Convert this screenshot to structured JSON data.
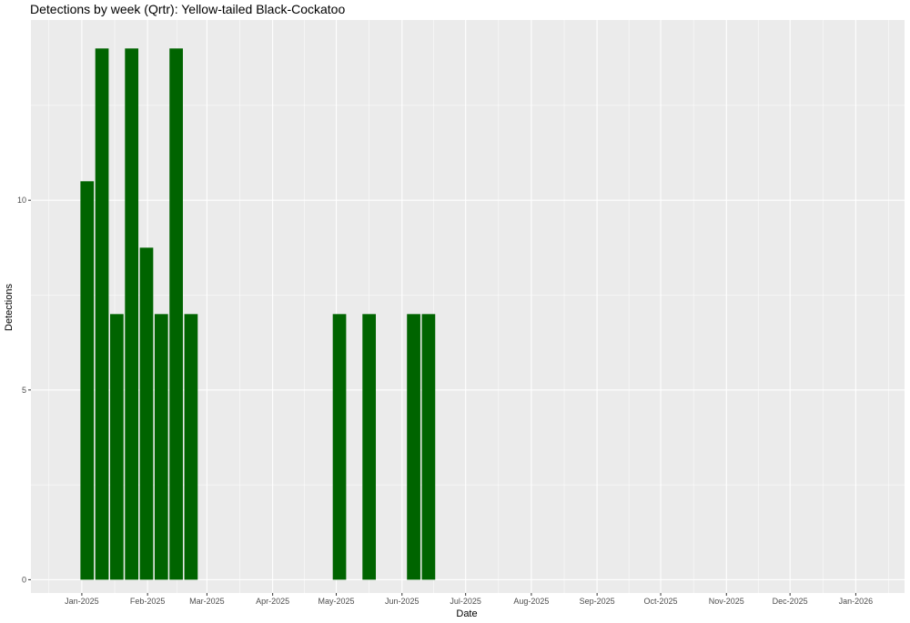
{
  "chart_data": {
    "type": "bar",
    "title": "Detections by week (Qrtr): Yellow-tailed Black-Cockatoo",
    "xlabel": "Date",
    "ylabel": "Detections",
    "x_ticks": [
      "Jan-2025",
      "Feb-2025",
      "Mar-2025",
      "Apr-2025",
      "May-2025",
      "Jun-2025",
      "Jul-2025",
      "Aug-2025",
      "Sep-2025",
      "Oct-2025",
      "Nov-2025",
      "Dec-2025",
      "Jan-2026"
    ],
    "x_tick_dates": [
      "2025-01-01",
      "2025-02-01",
      "2025-03-01",
      "2025-04-01",
      "2025-05-01",
      "2025-06-01",
      "2025-07-01",
      "2025-08-01",
      "2025-09-01",
      "2025-10-01",
      "2025-11-01",
      "2025-12-01",
      "2026-01-01"
    ],
    "xlim": [
      "2024-12-08",
      "2026-01-24"
    ],
    "y_ticks": [
      "0",
      "5",
      "10"
    ],
    "ylim": [
      -0.35,
      14.75
    ],
    "grid": true,
    "bar_color": "#006400",
    "background": "#ebebeb",
    "grid_color": "#ffffff",
    "bars": [
      {
        "week_start": "2024-12-31",
        "value": 10.5
      },
      {
        "week_start": "2025-01-07",
        "value": 14
      },
      {
        "week_start": "2025-01-14",
        "value": 7
      },
      {
        "week_start": "2025-01-21",
        "value": 14
      },
      {
        "week_start": "2025-01-28",
        "value": 8.75
      },
      {
        "week_start": "2025-02-04",
        "value": 7
      },
      {
        "week_start": "2025-02-11",
        "value": 14
      },
      {
        "week_start": "2025-02-18",
        "value": 7
      },
      {
        "week_start": "2025-04-29",
        "value": 7
      },
      {
        "week_start": "2025-05-13",
        "value": 7
      },
      {
        "week_start": "2025-06-03",
        "value": 7
      },
      {
        "week_start": "2025-06-10",
        "value": 7
      }
    ]
  }
}
